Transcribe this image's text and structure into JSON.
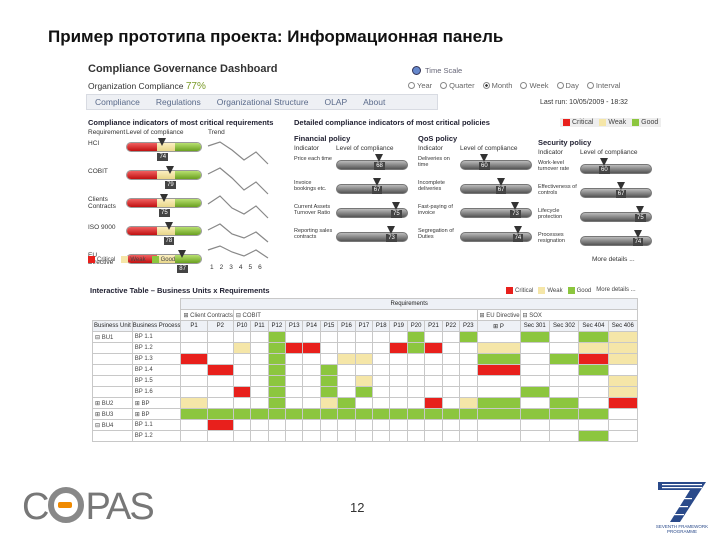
{
  "slide": {
    "title": "Пример прототипа проекта: Информационная панель",
    "page_number": "12",
    "logo_text_before": "C",
    "logo_text_after": "PAS",
    "fp7_line1": "SEVENTH FRAMEWORK",
    "fp7_line2": "PROGRAMME"
  },
  "dashboard": {
    "title": "Compliance Governance Dashboard",
    "org_compliance_label": "Organization Compliance",
    "org_compliance_value": "77%",
    "timescale": {
      "label": "Time Scale",
      "options": [
        "Year",
        "Quarter",
        "Month",
        "Week",
        "Day",
        "Interval"
      ],
      "selected": "Month"
    },
    "nav": [
      "Compliance",
      "Regulations",
      "Organizational Structure",
      "OLAP",
      "About"
    ],
    "last_run": "Last run: 10/05/2009 - 18:32",
    "status_legend": [
      "Critical",
      "Weak",
      "Good"
    ],
    "colors": {
      "critical": "#e8201c",
      "weak": "#f5e6a8",
      "good": "#8cc63e"
    },
    "critical_section": {
      "title": "Compliance indicators of most critical requirements",
      "col_requirement": "Requirement",
      "col_level": "Level of compliance",
      "col_trend": "Trend",
      "rows": [
        {
          "label": "HCI",
          "value": "74"
        },
        {
          "label": "COBIT",
          "value": "79"
        },
        {
          "label": "Clients Contracts",
          "value": "75"
        },
        {
          "label": "ISO 9000",
          "value": "78"
        },
        {
          "label": "EU Directive",
          "value": "87"
        }
      ],
      "legend": [
        "Critical",
        "Weak",
        "Good"
      ],
      "trend_x": [
        "1",
        "2",
        "3",
        "4",
        "5",
        "6"
      ]
    },
    "detailed_title": "Detailed compliance indicators of most critical policies",
    "financial": {
      "title": "Financial policy",
      "col_indicator": "Indicator",
      "col_level": "Level of compliance",
      "rows": [
        {
          "label": "Price each time",
          "value": "68"
        },
        {
          "label": "Invoice bookings etc.",
          "value": "67"
        },
        {
          "label": "Current Assets Turnover Ratio",
          "value": "75"
        },
        {
          "label": "Reporting sales contracts",
          "value": "73"
        }
      ]
    },
    "qos": {
      "title": "QoS policy",
      "col_indicator": "Indicator",
      "col_level": "Level of compliance",
      "rows": [
        {
          "label": "Deliveries on time",
          "value": "60"
        },
        {
          "label": "Incomplete deliveries",
          "value": "67"
        },
        {
          "label": "Fast-paying of invoice",
          "value": "73"
        },
        {
          "label": "Segregation of Duties",
          "value": "74"
        }
      ]
    },
    "security": {
      "title": "Security policy",
      "col_indicator": "Indicator",
      "col_level": "Level of compliance",
      "rows": [
        {
          "label": "Work-level turnover rate",
          "value": "60"
        },
        {
          "label": "Effectiveness of controls",
          "value": "67"
        },
        {
          "label": "Lifecycle protection",
          "value": "75"
        },
        {
          "label": "Processes resignation",
          "value": "74"
        }
      ]
    },
    "more_details": "More details ..."
  },
  "interactive_table": {
    "title": "Interactive Table – Business Units x Requirements",
    "legend": [
      "Critical",
      "Weak",
      "Good"
    ],
    "more_details": "More details ...",
    "requirements_label": "Requirements",
    "group_headers": [
      "⊞ Client Contracts",
      "⊟ COBIT",
      "⊞ EU Directive",
      "⊟ SOX"
    ],
    "col_unit": "Business Unit",
    "col_process": "Business Process",
    "columns": [
      "P1",
      "P2",
      "P10",
      "P11",
      "P12",
      "P13",
      "P14",
      "P15",
      "P16",
      "P17",
      "P18",
      "P19",
      "P20",
      "P21",
      "P22",
      "P23",
      "⊞ P",
      "Sec 301",
      "Sec 302",
      "Sec 404",
      "Sec 406"
    ],
    "rows": [
      {
        "unit": "⊟ BU1",
        "process": "BP 1.1",
        "cells": "....g.......g..g.g.gy"
      },
      {
        "unit": "",
        "process": "BP 1.2",
        "cells": "..y.grr....rgr..y..yy"
      },
      {
        "unit": "",
        "process": "BP 1.3",
        "cells": "r...g...yy......g.gry"
      },
      {
        "unit": "",
        "process": "BP 1.4",
        "cells": ".r..g..g........r..g."
      },
      {
        "unit": "",
        "process": "BP 1.5",
        "cells": "....g..g.y..........y"
      },
      {
        "unit": "",
        "process": "BP 1.6",
        "cells": "..r.g..g.g.......g..y"
      },
      {
        "unit": "⊞ BU2",
        "process": "⊞ BP",
        "cells": "y...g..yg....r.yg.g.r"
      },
      {
        "unit": "⊞ BU3",
        "process": "⊞ BP",
        "cells": "gggggggggggggggggggg."
      },
      {
        "unit": "⊟ BU4",
        "process": "BP 1.1",
        "cells": ".r..................."
      },
      {
        "unit": "",
        "process": "BP 1.2",
        "cells": "...................g."
      }
    ]
  }
}
